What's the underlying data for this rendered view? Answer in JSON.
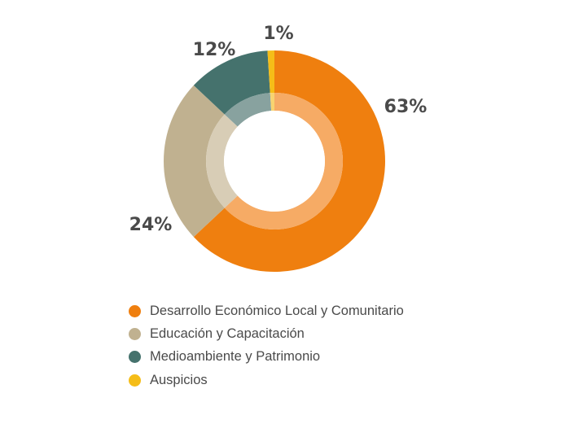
{
  "chart_data": {
    "type": "pie",
    "donut": true,
    "title": "",
    "categories": [
      "Desarrollo Económico Local y Comunitario",
      "Educación y Capacitación",
      "Medioambiente y Patrimonio",
      "Auspicios"
    ],
    "values": [
      63,
      24,
      12,
      1
    ],
    "value_labels": [
      "63%",
      "24%",
      "12%",
      "1%"
    ],
    "colors": [
      "#ef7f0f",
      "#c0b190",
      "#45726d",
      "#f5bd18"
    ],
    "inner_colors": [
      "#f6ab65",
      "#d8cdb6",
      "#88a29f",
      "#f8d470"
    ],
    "legend_position": "bottom-left"
  }
}
